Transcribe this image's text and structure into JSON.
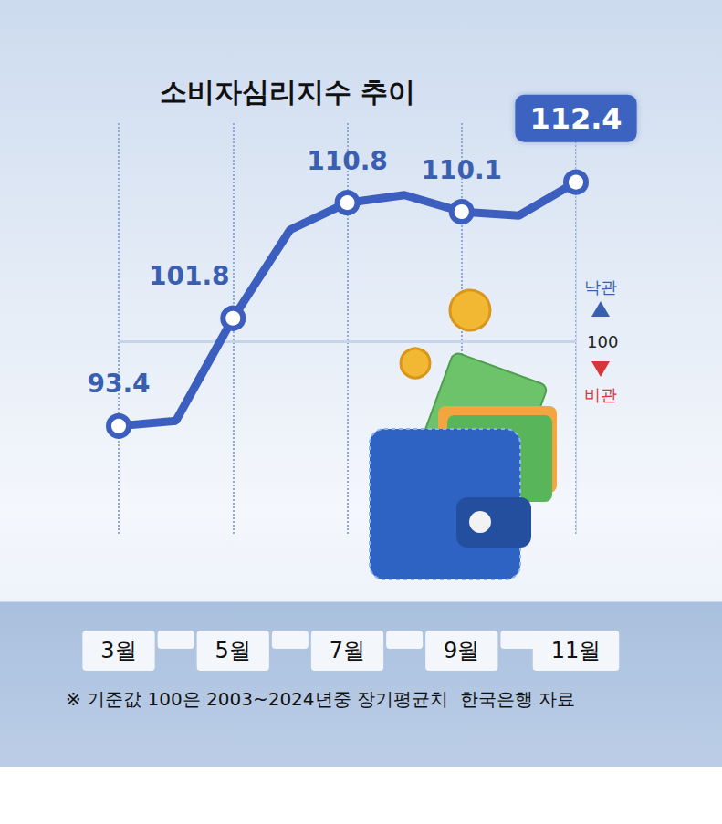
{
  "chart_data": {
    "type": "line",
    "title": "소비자심리지수 추이",
    "categories": [
      "3월",
      null,
      "5월",
      null,
      "7월",
      null,
      "9월",
      null,
      "11월"
    ],
    "values": [
      93.4,
      93.8,
      101.8,
      108.7,
      110.8,
      111.4,
      110.1,
      109.8,
      112.4
    ],
    "value_labels": [
      "93.4",
      null,
      "101.8",
      null,
      "110.8",
      null,
      "110.1",
      null,
      "112.4"
    ],
    "data_labels": true,
    "color": "#3c5fbf",
    "marker": "circle",
    "ylim": [
      85,
      117
    ],
    "yticks": [
      100
    ],
    "grid": true,
    "annotations": {
      "above": "낙관",
      "below": "비관"
    },
    "note": "※ 기준값 100은 2003~2024년중 장기평균치  한국은행 자료"
  }
}
